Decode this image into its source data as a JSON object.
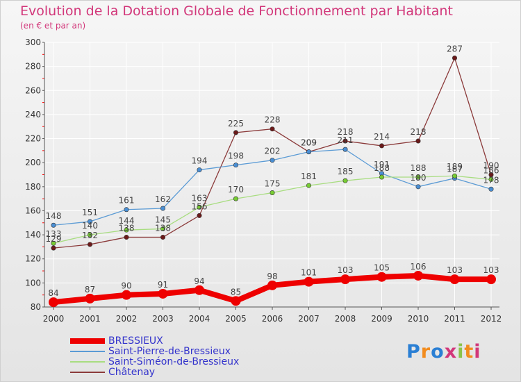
{
  "title": "Evolution de la Dotation Globale de Fonctionnement par Habitant",
  "subtitle": "(en € et par an)",
  "logo": {
    "text": "Proxiti",
    "letter_colors": [
      "#2a7fd4",
      "#f28c1e",
      "#2a7fd4",
      "#d2377a",
      "#8bc34a",
      "#f28c1e",
      "#d2377a"
    ]
  },
  "colors": {
    "title": "#d2377a",
    "legend_text": "#3333cc",
    "axis": "#555555",
    "grid": "#ffffff",
    "tick_mark": "#ff0000"
  },
  "chart_data": {
    "type": "line",
    "title": "Evolution de la Dotation Globale de Fonctionnement par Habitant",
    "subtitle": "(en € et par an)",
    "x": [
      "2000",
      "2001",
      "2002",
      "2003",
      "2004",
      "2005",
      "2006",
      "2007",
      "2008",
      "2009",
      "2010",
      "2011",
      "2012"
    ],
    "ylim": [
      80,
      300
    ],
    "yticks": [
      80,
      100,
      120,
      140,
      160,
      180,
      200,
      220,
      240,
      260,
      280,
      300
    ],
    "grid": true,
    "legend_position": "bottom-left",
    "series": [
      {
        "name": "BRESSIEUX",
        "color": "#ee0000",
        "width": "thick",
        "values": [
          84,
          87,
          90,
          91,
          94,
          85,
          98,
          101,
          103,
          105,
          106,
          103,
          103
        ]
      },
      {
        "name": "Saint-Pierre-de-Bressieux",
        "color": "#5b9bd5",
        "marker": "#4a8fd4",
        "values": [
          148,
          151,
          161,
          162,
          194,
          198,
          202,
          209,
          211,
          191,
          180,
          187,
          178
        ]
      },
      {
        "name": "Saint-Siméon-de-Bressieux",
        "color": "#a8dd80",
        "marker": "#77cc33",
        "values": [
          133,
          140,
          144,
          145,
          163,
          170,
          175,
          181,
          185,
          188,
          188,
          189,
          186
        ]
      },
      {
        "name": "Châtenay",
        "color": "#8b3a3a",
        "marker": "#6b1a1a",
        "values": [
          129,
          132,
          138,
          138,
          156,
          225,
          228,
          209,
          218,
          214,
          218,
          287,
          190
        ]
      }
    ]
  }
}
